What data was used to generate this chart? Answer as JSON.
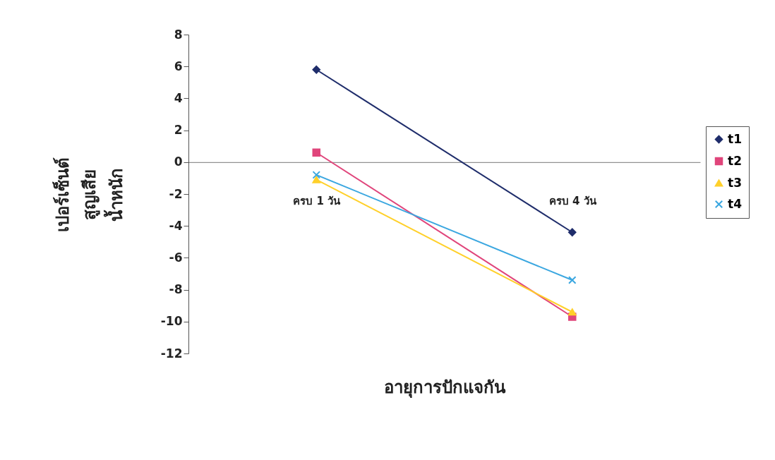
{
  "chart_data": {
    "type": "line",
    "xlabel": "อายุการปักแจกัน",
    "ylabel": "เปอร์เซ็นต์ สูญเสีย น้ำหนัก",
    "categories": [
      "ครบ 1 วัน",
      "ครบ 4 วัน"
    ],
    "series": [
      {
        "name": "t1",
        "color": "#1f2d6b",
        "marker": "diamond",
        "values": [
          5.8,
          -4.4
        ]
      },
      {
        "name": "t2",
        "color": "#e0457b",
        "marker": "square",
        "values": [
          0.6,
          -9.7
        ]
      },
      {
        "name": "t3",
        "color": "#ffd02a",
        "marker": "triangle",
        "values": [
          -1.1,
          -9.4
        ]
      },
      {
        "name": "t4",
        "color": "#3ba7e0",
        "marker": "cross",
        "values": [
          -0.8,
          -7.4
        ]
      }
    ],
    "ylim": [
      -12,
      8
    ],
    "yticks": [
      -12,
      -10,
      -8,
      -6,
      -4,
      -2,
      0,
      2,
      4,
      6,
      8
    ],
    "legend": "right",
    "line_style": "solid"
  }
}
